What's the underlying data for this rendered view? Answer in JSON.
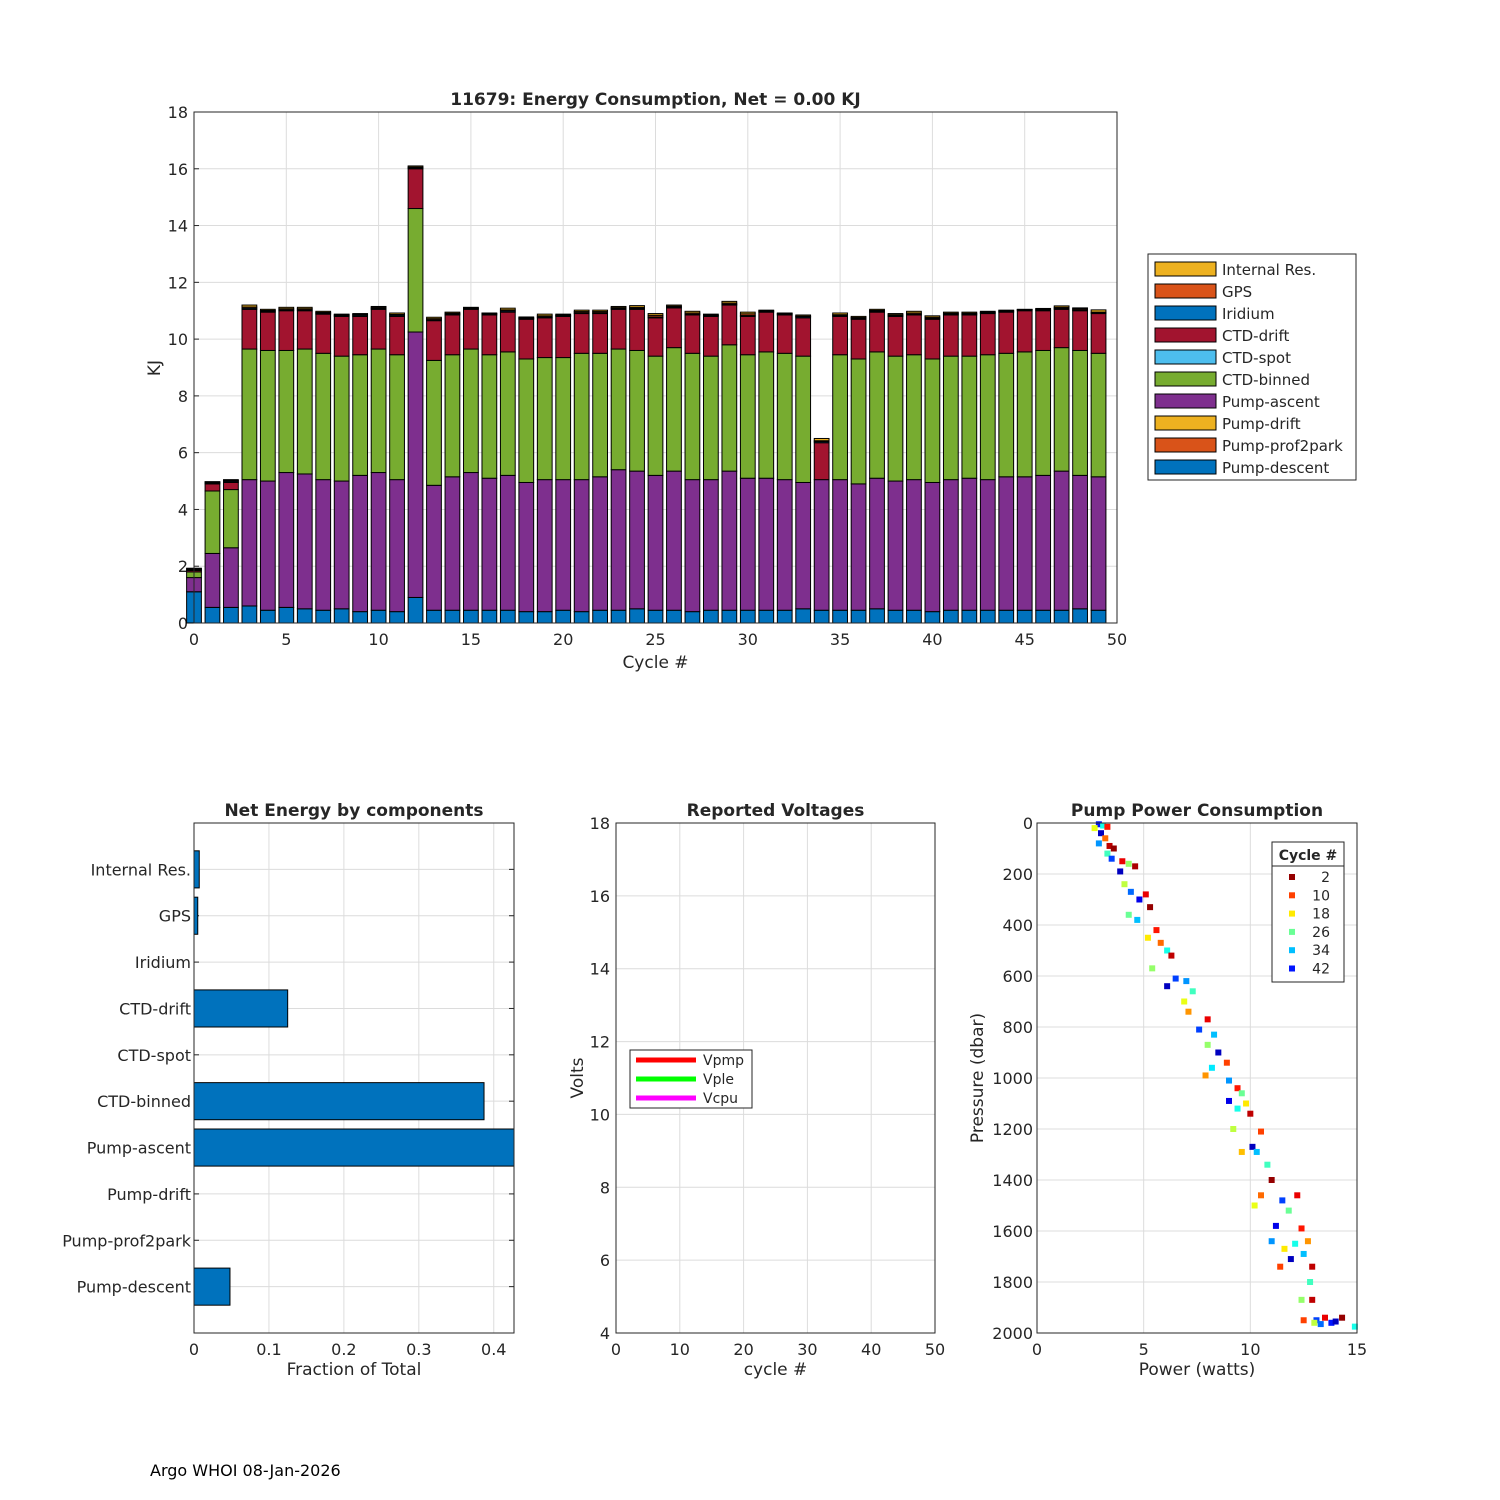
{
  "footer": "Argo WHOI 08-Jan-2026",
  "chart_data": [
    {
      "type": "bar",
      "stacked": true,
      "title": "11679: Energy Consumption,  Net =   0.00 KJ",
      "xlabel": "Cycle #",
      "ylabel": "KJ",
      "xlim": [
        0,
        50
      ],
      "ylim": [
        0,
        18
      ],
      "xticks": [
        0,
        5,
        10,
        15,
        20,
        25,
        30,
        35,
        40,
        45,
        50
      ],
      "yticks": [
        0,
        2,
        4,
        6,
        8,
        10,
        12,
        14,
        16,
        18
      ],
      "grid": true,
      "legend_position": "outside-right",
      "x": [
        0,
        1,
        2,
        3,
        4,
        5,
        6,
        7,
        8,
        9,
        10,
        11,
        12,
        13,
        14,
        15,
        16,
        17,
        18,
        19,
        20,
        21,
        22,
        23,
        24,
        25,
        26,
        27,
        28,
        29,
        30,
        31,
        32,
        33,
        34,
        35,
        36,
        37,
        38,
        39,
        40,
        41,
        42,
        43,
        44,
        45,
        46,
        47,
        48,
        49
      ],
      "series": [
        {
          "name": "Pump-descent",
          "color": "#0072bd",
          "values": [
            1.1,
            0.55,
            0.55,
            0.6,
            0.45,
            0.55,
            0.5,
            0.45,
            0.5,
            0.4,
            0.45,
            0.4,
            0.9,
            0.45,
            0.45,
            0.45,
            0.45,
            0.45,
            0.4,
            0.4,
            0.45,
            0.4,
            0.45,
            0.45,
            0.5,
            0.45,
            0.45,
            0.4,
            0.45,
            0.45,
            0.45,
            0.45,
            0.45,
            0.5,
            0.45,
            0.45,
            0.45,
            0.5,
            0.45,
            0.45,
            0.4,
            0.45,
            0.45,
            0.45,
            0.45,
            0.45,
            0.45,
            0.45,
            0.5,
            0.45
          ]
        },
        {
          "name": "Pump-prof2park",
          "color": "#d95319",
          "values": [
            0,
            0,
            0,
            0,
            0,
            0,
            0,
            0,
            0,
            0,
            0,
            0,
            0,
            0,
            0,
            0,
            0,
            0,
            0,
            0,
            0,
            0,
            0,
            0,
            0,
            0,
            0,
            0,
            0,
            0,
            0,
            0,
            0,
            0,
            0,
            0,
            0,
            0,
            0,
            0,
            0,
            0,
            0,
            0,
            0,
            0,
            0,
            0,
            0,
            0
          ]
        },
        {
          "name": "Pump-drift",
          "color": "#edb120",
          "values": [
            0,
            0,
            0,
            0,
            0,
            0,
            0,
            0,
            0,
            0,
            0,
            0,
            0,
            0,
            0,
            0,
            0,
            0,
            0,
            0,
            0,
            0,
            0,
            0,
            0,
            0,
            0,
            0,
            0,
            0,
            0,
            0,
            0,
            0,
            0,
            0,
            0,
            0,
            0,
            0,
            0,
            0,
            0,
            0,
            0,
            0,
            0,
            0,
            0,
            0
          ]
        },
        {
          "name": "Pump-ascent",
          "color": "#7e2f8e",
          "values": [
            0.5,
            1.9,
            2.1,
            4.45,
            4.55,
            4.75,
            4.75,
            4.6,
            4.5,
            4.8,
            4.85,
            4.65,
            9.35,
            4.4,
            4.7,
            4.85,
            4.65,
            4.75,
            4.55,
            4.65,
            4.6,
            4.65,
            4.7,
            4.95,
            4.85,
            4.75,
            4.9,
            4.65,
            4.6,
            4.9,
            4.65,
            4.65,
            4.6,
            4.45,
            4.6,
            4.6,
            4.45,
            4.6,
            4.55,
            4.6,
            4.55,
            4.6,
            4.65,
            4.6,
            4.7,
            4.7,
            4.75,
            4.9,
            4.7,
            4.7
          ]
        },
        {
          "name": "CTD-binned",
          "color": "#77ac30",
          "values": [
            0.2,
            2.2,
            2.05,
            4.6,
            4.6,
            4.3,
            4.4,
            4.45,
            4.4,
            4.25,
            4.35,
            4.4,
            4.35,
            4.4,
            4.3,
            4.35,
            4.35,
            4.35,
            4.35,
            4.3,
            4.3,
            4.45,
            4.35,
            4.25,
            4.25,
            4.2,
            4.35,
            4.45,
            4.35,
            4.45,
            4.35,
            4.45,
            4.45,
            4.45,
            0,
            4.4,
            4.4,
            4.45,
            4.4,
            4.4,
            4.35,
            4.35,
            4.3,
            4.4,
            4.35,
            4.4,
            4.4,
            4.35,
            4.4,
            4.35
          ]
        },
        {
          "name": "CTD-spot",
          "color": "#4dbeee",
          "values": [
            0,
            0,
            0,
            0,
            0,
            0,
            0,
            0,
            0,
            0,
            0,
            0,
            0,
            0,
            0,
            0,
            0,
            0,
            0,
            0,
            0,
            0,
            0,
            0,
            0,
            0,
            0,
            0,
            0,
            0,
            0,
            0,
            0,
            0,
            0,
            0,
            0,
            0,
            0,
            0,
            0,
            0,
            0,
            0,
            0,
            0,
            0,
            0,
            0,
            0
          ]
        },
        {
          "name": "CTD-drift",
          "color": "#a2142f",
          "values": [
            0.05,
            0.25,
            0.25,
            1.4,
            1.35,
            1.4,
            1.35,
            1.38,
            1.4,
            1.35,
            1.4,
            1.35,
            1.4,
            1.4,
            1.4,
            1.4,
            1.4,
            1.4,
            1.4,
            1.4,
            1.45,
            1.4,
            1.4,
            1.4,
            1.45,
            1.35,
            1.4,
            1.35,
            1.4,
            1.4,
            1.35,
            1.4,
            1.35,
            1.35,
            1.3,
            1.35,
            1.4,
            1.4,
            1.4,
            1.4,
            1.4,
            1.45,
            1.45,
            1.45,
            1.45,
            1.45,
            1.4,
            1.35,
            1.4,
            1.4
          ]
        },
        {
          "name": "Iridium",
          "color": "#0072bd",
          "values": [
            0.03,
            0.03,
            0.04,
            0.04,
            0.03,
            0.03,
            0.03,
            0.03,
            0.03,
            0.04,
            0.03,
            0.04,
            0.03,
            0.03,
            0.03,
            0.03,
            0.03,
            0.04,
            0.03,
            0.03,
            0.03,
            0.03,
            0.03,
            0.03,
            0.03,
            0.03,
            0.03,
            0.03,
            0.03,
            0.03,
            0.03,
            0.03,
            0.03,
            0.04,
            0.04,
            0.03,
            0.03,
            0.03,
            0.03,
            0.03,
            0.03,
            0.03,
            0.03,
            0.03,
            0.03,
            0.03,
            0.03,
            0.03,
            0.03,
            0.03
          ]
        },
        {
          "name": "GPS",
          "color": "#d95319",
          "values": [
            0.03,
            0.03,
            0.03,
            0.04,
            0.03,
            0.04,
            0.04,
            0.03,
            0.03,
            0.03,
            0.04,
            0.03,
            0.03,
            0.04,
            0.03,
            0.02,
            0.02,
            0.04,
            0.02,
            0.04,
            0.02,
            0.04,
            0.04,
            0.03,
            0.04,
            0.06,
            0.03,
            0.04,
            0.02,
            0.04,
            0.06,
            0.02,
            0.02,
            0.02,
            0.03,
            0.03,
            0.03,
            0.03,
            0.03,
            0.04,
            0.04,
            0.03,
            0.03,
            0.02,
            0.02,
            0.01,
            0.03,
            0.04,
            0.04,
            0.02
          ]
        },
        {
          "name": "Internal Res.",
          "color": "#edb120",
          "values": [
            0.02,
            0.02,
            0.03,
            0.07,
            0.04,
            0.05,
            0.05,
            0.04,
            0.02,
            0.03,
            0.03,
            0.05,
            0.04,
            0.05,
            0.04,
            0.02,
            0.02,
            0.06,
            0.03,
            0.06,
            0.03,
            0.05,
            0.05,
            0.04,
            0.06,
            0.06,
            0.04,
            0.06,
            0.03,
            0.06,
            0.06,
            0.02,
            0.02,
            0.04,
            0.08,
            0.06,
            0.04,
            0.04,
            0.04,
            0.06,
            0.05,
            0.04,
            0.04,
            0.03,
            0.02,
            0.01,
            0.02,
            0.05,
            0.03,
            0.08
          ]
        }
      ],
      "legend": [
        "Internal Res.",
        "GPS",
        "Iridium",
        "CTD-drift",
        "CTD-spot",
        "CTD-binned",
        "Pump-ascent",
        "Pump-drift",
        "Pump-prof2park",
        "Pump-descent"
      ]
    },
    {
      "type": "bar",
      "orientation": "horizontal",
      "title": "Net Energy by components",
      "xlabel": "Fraction of Total",
      "ylabel": "",
      "xlim": [
        0,
        0.427
      ],
      "xticks": [
        0,
        0.1,
        0.2,
        0.3,
        0.4
      ],
      "xtick_labels": [
        "0",
        "0.1",
        "0.2",
        "0.3",
        "0.4"
      ],
      "grid": true,
      "color": "#0072bd",
      "categories": [
        "Pump-descent",
        "Pump-prof2park",
        "Pump-drift",
        "Pump-ascent",
        "CTD-binned",
        "CTD-spot",
        "CTD-drift",
        "Iridium",
        "GPS",
        "Internal Res."
      ],
      "values": [
        0.048,
        0,
        0,
        0.436,
        0.387,
        0,
        0.125,
        0,
        0.005,
        0.007
      ]
    },
    {
      "type": "line",
      "title": "Reported Voltages",
      "xlabel": "cycle #",
      "ylabel": "Volts",
      "xlim": [
        0,
        50
      ],
      "ylim": [
        4,
        18
      ],
      "xticks": [
        0,
        10,
        20,
        30,
        40,
        50
      ],
      "yticks": [
        4,
        6,
        8,
        10,
        12,
        14,
        16,
        18
      ],
      "grid": true,
      "legend_position": "middle-left",
      "series": [
        {
          "name": "Vpmp",
          "color": "#ff0000",
          "values": []
        },
        {
          "name": "Vple",
          "color": "#00ff00",
          "values": []
        },
        {
          "name": "Vcpu",
          "color": "#ff00ff",
          "values": []
        }
      ]
    },
    {
      "type": "scatter",
      "title": "Pump Power Consumption",
      "xlabel": "Power (watts)",
      "ylabel": "Pressure (dbar)",
      "xlim": [
        0,
        15
      ],
      "ylim": [
        2000,
        0
      ],
      "xticks": [
        0,
        5,
        10,
        15
      ],
      "yticks": [
        0,
        200,
        400,
        600,
        800,
        1000,
        1200,
        1400,
        1600,
        1800,
        2000
      ],
      "grid": true,
      "legend_title": "Cycle #",
      "legend_position": "top-right",
      "legend": [
        2,
        10,
        18,
        26,
        34,
        42
      ],
      "color_range": [
        1,
        49
      ],
      "points": [
        [
          2.9,
          5,
          42
        ],
        [
          3.1,
          10,
          30
        ],
        [
          3.3,
          15,
          8
        ],
        [
          2.7,
          20,
          20
        ],
        [
          3.0,
          40,
          46
        ],
        [
          3.2,
          60,
          12
        ],
        [
          2.9,
          80,
          36
        ],
        [
          3.4,
          90,
          4
        ],
        [
          3.6,
          100,
          2
        ],
        [
          3.3,
          120,
          28
        ],
        [
          3.5,
          140,
          40
        ],
        [
          4.0,
          150,
          6
        ],
        [
          4.3,
          160,
          24
        ],
        [
          3.9,
          190,
          46
        ],
        [
          4.6,
          170,
          3
        ],
        [
          4.1,
          240,
          22
        ],
        [
          4.4,
          270,
          38
        ],
        [
          4.8,
          300,
          44
        ],
        [
          5.1,
          280,
          6
        ],
        [
          5.3,
          330,
          2
        ],
        [
          4.3,
          360,
          26
        ],
        [
          4.7,
          380,
          34
        ],
        [
          5.6,
          420,
          8
        ],
        [
          5.2,
          450,
          18
        ],
        [
          5.8,
          470,
          12
        ],
        [
          6.1,
          500,
          30
        ],
        [
          6.3,
          520,
          4
        ],
        [
          5.4,
          570,
          24
        ],
        [
          6.5,
          610,
          40
        ],
        [
          6.1,
          640,
          46
        ],
        [
          7.0,
          620,
          36
        ],
        [
          7.3,
          660,
          28
        ],
        [
          6.9,
          700,
          20
        ],
        [
          7.1,
          740,
          14
        ],
        [
          8.0,
          770,
          6
        ],
        [
          7.6,
          810,
          40
        ],
        [
          8.3,
          830,
          34
        ],
        [
          8.0,
          870,
          24
        ],
        [
          8.5,
          900,
          46
        ],
        [
          8.2,
          960,
          32
        ],
        [
          8.9,
          940,
          10
        ],
        [
          7.9,
          990,
          14
        ],
        [
          9.0,
          1010,
          36
        ],
        [
          9.4,
          1040,
          8
        ],
        [
          9.6,
          1060,
          26
        ],
        [
          9.8,
          1100,
          18
        ],
        [
          9.0,
          1090,
          44
        ],
        [
          9.4,
          1120,
          30
        ],
        [
          10.0,
          1140,
          4
        ],
        [
          9.2,
          1200,
          22
        ],
        [
          10.5,
          1210,
          10
        ],
        [
          10.1,
          1270,
          46
        ],
        [
          10.3,
          1290,
          34
        ],
        [
          9.6,
          1290,
          16
        ],
        [
          10.8,
          1340,
          28
        ],
        [
          11.0,
          1400,
          2
        ],
        [
          10.5,
          1460,
          12
        ],
        [
          11.5,
          1480,
          40
        ],
        [
          12.2,
          1460,
          6
        ],
        [
          10.2,
          1500,
          20
        ],
        [
          11.8,
          1520,
          26
        ],
        [
          11.2,
          1580,
          44
        ],
        [
          12.4,
          1590,
          8
        ],
        [
          11.0,
          1640,
          36
        ],
        [
          11.6,
          1670,
          18
        ],
        [
          12.1,
          1650,
          30
        ],
        [
          12.7,
          1640,
          14
        ],
        [
          11.9,
          1710,
          46
        ],
        [
          12.5,
          1690,
          34
        ],
        [
          11.4,
          1740,
          10
        ],
        [
          12.9,
          1740,
          4
        ],
        [
          12.8,
          1800,
          28
        ],
        [
          12.4,
          1870,
          24
        ],
        [
          12.9,
          1870,
          4
        ],
        [
          13.1,
          1950,
          40
        ],
        [
          12.5,
          1950,
          10
        ],
        [
          13.5,
          1940,
          6
        ],
        [
          13.8,
          1960,
          42
        ],
        [
          13.0,
          1960,
          22
        ],
        [
          14.3,
          1940,
          2
        ],
        [
          14.0,
          1955,
          46
        ],
        [
          14.9,
          1975,
          30
        ],
        [
          13.3,
          1965,
          38
        ]
      ]
    }
  ]
}
